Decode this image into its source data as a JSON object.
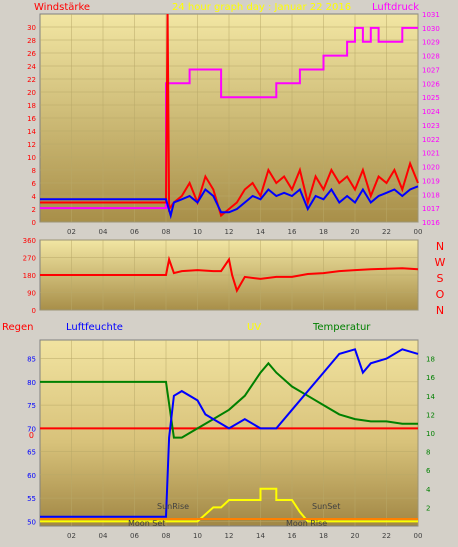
{
  "chart_data": [
    {
      "type": "line",
      "title": "24 hour graph day : Januar 22 2016",
      "left_label": "Windstärke",
      "right_label": "Luftdruck",
      "x_ticks": [
        "02",
        "04",
        "06",
        "08",
        "10",
        "12",
        "14",
        "16",
        "18",
        "20",
        "22",
        "00"
      ],
      "ylim_left": [
        0,
        32
      ],
      "y_ticks_left": [
        0,
        2,
        4,
        6,
        8,
        10,
        12,
        14,
        16,
        18,
        20,
        22,
        24,
        26,
        28,
        30
      ],
      "ylim_right": [
        1016,
        1031
      ],
      "y_ticks_right": [
        1016,
        1017,
        1018,
        1019,
        1020,
        1021,
        1022,
        1023,
        1024,
        1025,
        1026,
        1027,
        1028,
        1029,
        1030,
        1031
      ],
      "series": [
        {
          "color": "#ff00ff",
          "axis": "right",
          "points": [
            [
              0,
              1017
            ],
            [
              8,
              1017
            ],
            [
              8,
              1026
            ],
            [
              9.5,
              1026
            ],
            [
              9.5,
              1027
            ],
            [
              11.5,
              1027
            ],
            [
              11.5,
              1025
            ],
            [
              15,
              1025
            ],
            [
              15,
              1026
            ],
            [
              16.5,
              1026
            ],
            [
              16.5,
              1027
            ],
            [
              18,
              1027
            ],
            [
              18,
              1028
            ],
            [
              19.5,
              1028
            ],
            [
              19.5,
              1029
            ],
            [
              20,
              1029
            ],
            [
              20,
              1030
            ],
            [
              20.5,
              1030
            ],
            [
              20.5,
              1029
            ],
            [
              21,
              1029
            ],
            [
              21,
              1030
            ],
            [
              21.5,
              1030
            ],
            [
              21.5,
              1029
            ],
            [
              23,
              1029
            ],
            [
              23,
              1030
            ],
            [
              24,
              1030
            ]
          ]
        },
        {
          "color": "#ff0000",
          "axis": "left",
          "points": [
            [
              0,
              3
            ],
            [
              8,
              3
            ],
            [
              8.1,
              32
            ],
            [
              8.2,
              2
            ],
            [
              8.5,
              3
            ],
            [
              9,
              4
            ],
            [
              9.5,
              6
            ],
            [
              10,
              3
            ],
            [
              10.5,
              7
            ],
            [
              11,
              5
            ],
            [
              11.5,
              1
            ],
            [
              12,
              2
            ],
            [
              12.5,
              3
            ],
            [
              13,
              5
            ],
            [
              13.5,
              6
            ],
            [
              14,
              4
            ],
            [
              14.5,
              8
            ],
            [
              15,
              6
            ],
            [
              15.5,
              7
            ],
            [
              16,
              5
            ],
            [
              16.5,
              8
            ],
            [
              17,
              3
            ],
            [
              17.5,
              7
            ],
            [
              18,
              5
            ],
            [
              18.5,
              8
            ],
            [
              19,
              6
            ],
            [
              19.5,
              7
            ],
            [
              20,
              5
            ],
            [
              20.5,
              8
            ],
            [
              21,
              4
            ],
            [
              21.5,
              7
            ],
            [
              22,
              6
            ],
            [
              22.5,
              8
            ],
            [
              23,
              5
            ],
            [
              23.5,
              9
            ],
            [
              24,
              6
            ]
          ]
        },
        {
          "color": "#0000ff",
          "axis": "left",
          "points": [
            [
              0,
              3.5
            ],
            [
              8,
              3.5
            ],
            [
              8.3,
              1
            ],
            [
              8.5,
              3
            ],
            [
              9,
              3.5
            ],
            [
              9.5,
              4
            ],
            [
              10,
              3
            ],
            [
              10.5,
              5
            ],
            [
              11,
              4
            ],
            [
              11.5,
              1.5
            ],
            [
              12,
              1.5
            ],
            [
              12.5,
              2
            ],
            [
              13,
              3
            ],
            [
              13.5,
              4
            ],
            [
              14,
              3.5
            ],
            [
              14.5,
              5
            ],
            [
              15,
              4
            ],
            [
              15.5,
              4.5
            ],
            [
              16,
              4
            ],
            [
              16.5,
              5
            ],
            [
              17,
              2
            ],
            [
              17.5,
              4
            ],
            [
              18,
              3.5
            ],
            [
              18.5,
              5
            ],
            [
              19,
              3
            ],
            [
              19.5,
              4
            ],
            [
              20,
              3
            ],
            [
              20.5,
              5
            ],
            [
              21,
              3
            ],
            [
              21.5,
              4
            ],
            [
              22,
              4.5
            ],
            [
              22.5,
              5
            ],
            [
              23,
              4
            ],
            [
              23.5,
              5
            ],
            [
              24,
              5.5
            ]
          ]
        }
      ]
    },
    {
      "type": "line",
      "title": "",
      "right_label": "N W S O N",
      "x_ticks": [],
      "ylim": [
        0,
        360
      ],
      "y_ticks": [
        0,
        90,
        180,
        270,
        360
      ],
      "series": [
        {
          "color": "#ff0000",
          "points": [
            [
              0,
              180
            ],
            [
              8,
              180
            ],
            [
              8.2,
              260
            ],
            [
              8.5,
              190
            ],
            [
              9,
              200
            ],
            [
              10,
              205
            ],
            [
              11,
              200
            ],
            [
              11.5,
              200
            ],
            [
              12,
              260
            ],
            [
              12.2,
              180
            ],
            [
              12.5,
              100
            ],
            [
              13,
              170
            ],
            [
              14,
              160
            ],
            [
              15,
              170
            ],
            [
              16,
              170
            ],
            [
              17,
              185
            ],
            [
              18,
              190
            ],
            [
              19,
              200
            ],
            [
              20,
              205
            ],
            [
              21,
              210
            ],
            [
              22,
              212
            ],
            [
              23,
              215
            ],
            [
              24,
              210
            ]
          ]
        }
      ]
    },
    {
      "type": "line",
      "title": "",
      "left_label": "Regen",
      "center_labels": [
        "Luftfeuchte",
        "UV",
        "Temperatur"
      ],
      "x_ticks": [
        "02",
        "04",
        "06",
        "08",
        "10",
        "12",
        "14",
        "16",
        "18",
        "20",
        "22",
        "00"
      ],
      "ylim_left": [
        49,
        89
      ],
      "y_ticks_left": [
        50,
        55,
        60,
        65,
        70,
        75,
        80,
        85
      ],
      "ylim_right": [
        0,
        20
      ],
      "y_ticks_right": [
        2,
        4,
        6,
        8,
        10,
        12,
        14,
        16,
        18
      ],
      "regen_zero_label": "0",
      "annotations": [
        "SunRise",
        "SunSet",
        "Moon Set",
        "Moon Rise"
      ],
      "series": [
        {
          "color": "#ff0000",
          "axis": "left",
          "points": [
            [
              0,
              70
            ],
            [
              24,
              70
            ]
          ]
        },
        {
          "color": "#008000",
          "axis": "left",
          "points": [
            [
              0,
              80
            ],
            [
              8,
              80
            ],
            [
              8.5,
              68
            ],
            [
              9,
              68
            ],
            [
              9.5,
              69
            ],
            [
              10,
              70
            ],
            [
              11,
              72
            ],
            [
              12,
              74
            ],
            [
              13,
              77
            ],
            [
              14,
              82
            ],
            [
              14.5,
              84
            ],
            [
              15,
              82
            ],
            [
              16,
              79
            ],
            [
              17,
              77
            ],
            [
              18,
              75
            ],
            [
              19,
              73
            ],
            [
              20,
              72
            ],
            [
              21,
              71.5
            ],
            [
              22,
              71.5
            ],
            [
              23,
              71
            ],
            [
              24,
              71
            ]
          ]
        },
        {
          "color": "#0000ff",
          "axis": "left",
          "points": [
            [
              0,
              51
            ],
            [
              8,
              51
            ],
            [
              8.2,
              68
            ],
            [
              8.5,
              77
            ],
            [
              9,
              78
            ],
            [
              10,
              76
            ],
            [
              10.5,
              73
            ],
            [
              11,
              72
            ],
            [
              12,
              70
            ],
            [
              13,
              72
            ],
            [
              14,
              70
            ],
            [
              15,
              70
            ],
            [
              16,
              74
            ],
            [
              17,
              78
            ],
            [
              18,
              82
            ],
            [
              19,
              86
            ],
            [
              20,
              87
            ],
            [
              20.5,
              82
            ],
            [
              21,
              84
            ],
            [
              22,
              85
            ],
            [
              23,
              87
            ],
            [
              24,
              86
            ]
          ]
        },
        {
          "color": "#ffff00",
          "axis": "right",
          "points": [
            [
              0,
              0.5
            ],
            [
              8,
              0.5
            ],
            [
              10,
              0.5
            ],
            [
              11,
              2
            ],
            [
              11.5,
              2
            ],
            [
              12,
              2.8
            ],
            [
              14,
              2.8
            ],
            [
              14,
              4
            ],
            [
              15,
              4
            ],
            [
              15,
              2.8
            ],
            [
              16,
              2.8
            ],
            [
              16.5,
              1.5
            ],
            [
              17,
              0.5
            ],
            [
              24,
              0.5
            ]
          ]
        },
        {
          "color": "#ff8000",
          "axis": "left",
          "points": [
            [
              0,
              50.5
            ],
            [
              24,
              50.5
            ]
          ]
        }
      ]
    }
  ]
}
